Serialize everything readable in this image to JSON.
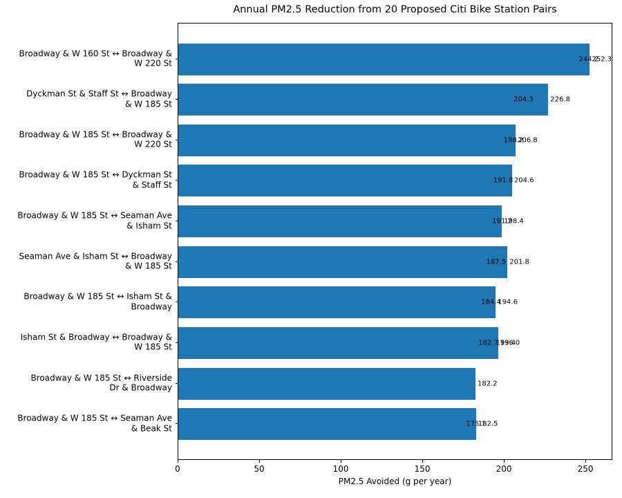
{
  "figure": {
    "background": "#ffffff"
  },
  "chart_data": {
    "type": "bar",
    "orientation": "horizontal",
    "title": "Annual PM2.5 Reduction from 20 Proposed Citi Bike Station Pairs",
    "xlabel": "PM2.5 Avoided (g per year)",
    "ylabel": "",
    "xlim": [
      0,
      266.5
    ],
    "xticks": [
      0,
      50,
      100,
      150,
      200,
      250
    ],
    "grid": false,
    "legend": null,
    "bar_color": "#1f77b4",
    "text_color": "#000000",
    "value_label_format": "one-decimal",
    "rows": [
      {
        "label": "Broadway & W 160 St ↔ Broadway & W 220 St",
        "label_lines": [
          "Broadway & W 160 St ↔ Broadway &",
          "W 220 St"
        ],
        "values": [
          244.2,
          252.3
        ],
        "value_labels": [
          "244.2",
          "252.3"
        ]
      },
      {
        "label": "Dyckman St & Staff St ↔ Broadway & W 185 St",
        "label_lines": [
          "Dyckman St & Staff St ↔ Broadway",
          "& W 185 St"
        ],
        "values": [
          204.3,
          226.8
        ],
        "value_labels": [
          "204.3",
          "226.8"
        ]
      },
      {
        "label": "Broadway & W 185 St ↔ Broadway & W 220 St",
        "label_lines": [
          "Broadway & W 185 St ↔ Broadway &",
          "W 220 St"
        ],
        "values": [
          198.2,
          206.8
        ],
        "value_labels": [
          "198.2",
          "206.8"
        ]
      },
      {
        "label": "Broadway & W 185 St ↔ Dyckman St & Staff St",
        "label_lines": [
          "Broadway & W 185 St ↔ Dyckman St",
          "& Staff St"
        ],
        "values": [
          191.8,
          204.6
        ],
        "value_labels": [
          "191.8",
          "204.6"
        ]
      },
      {
        "label": "Broadway & W 185 St ↔ Seaman Ave & Isham St",
        "label_lines": [
          "Broadway & W 185 St ↔ Seaman Ave",
          "& Isham St"
        ],
        "values": [
          191.2,
          198.4
        ],
        "value_labels": [
          "191.2",
          "198.4"
        ]
      },
      {
        "label": "Seaman Ave & Isham St ↔ Broadway & W 185 St",
        "label_lines": [
          "Seaman Ave & Isham St ↔ Broadway",
          "& W 185 St"
        ],
        "values": [
          187.5,
          201.8
        ],
        "value_labels": [
          "187.5",
          "201.8"
        ]
      },
      {
        "label": "Broadway & W 185 St ↔ Isham St & Broadway",
        "label_lines": [
          "Broadway & W 185 St ↔ Isham St &",
          "Broadway"
        ],
        "values": [
          184.4,
          194.6
        ],
        "value_labels": [
          "184.4",
          "194.6"
        ]
      },
      {
        "label": "Isham St & Broadway ↔ Broadway & W 185 St",
        "label_lines": [
          "Isham St & Broadway ↔ Broadway &",
          "W 185 St"
        ],
        "values": [
          182.7,
          193.4,
          196.0
        ],
        "value_labels": [
          "182.7",
          "193.4",
          "196.0"
        ]
      },
      {
        "label": "Broadway & W 185 St ↔ Riverside Dr & Broadway",
        "label_lines": [
          "Broadway & W 185 St ↔ Riverside",
          "Dr & Broadway"
        ],
        "values": [
          182.2
        ],
        "value_labels": [
          "182.2"
        ]
      },
      {
        "label": "Broadway & W 185 St ↔ Seaman Ave & Beak St",
        "label_lines": [
          "Broadway & W 185 St ↔ Seaman Ave",
          "& Beak St"
        ],
        "values": [
          175.1,
          182.5
        ],
        "value_labels": [
          "175.1",
          "182.5"
        ]
      }
    ]
  }
}
